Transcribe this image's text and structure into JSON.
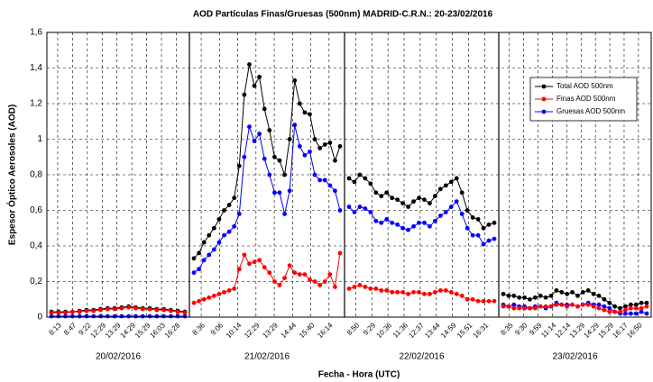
{
  "chart_data": {
    "type": "line",
    "title": "AOD Partículas Finas/Gruesas (500nm) MADRID-C.R.N.: 20-23/02/2016",
    "xlabel": "Fecha - Hora (UTC)",
    "ylabel": "Espesor Óptico Aerosoles (AOD)",
    "ylim": [
      0,
      1.6
    ],
    "yticks": [
      0,
      {
        "value": 0.2,
        "label": "0,2"
      },
      {
        "value": 0.4,
        "label": "0,4"
      },
      {
        "value": 0.6,
        "label": "0,6"
      },
      {
        "value": 0.8,
        "label": "0,8"
      },
      1,
      {
        "value": 1.2,
        "label": "1,2"
      },
      {
        "value": 1.4,
        "label": "1,4"
      },
      {
        "value": 1.6,
        "label": "1,6"
      }
    ],
    "grid": true,
    "legend": "upper right",
    "series": [
      {
        "name": "Total AOD 500nm",
        "color": "#000000"
      },
      {
        "name": "Finas AOD 500nm",
        "color": "#ff0000"
      },
      {
        "name": "Gruesas AOD 500nm",
        "color": "#0000ff"
      }
    ],
    "panels": [
      {
        "date": "20/02/2016",
        "xticks": [
          "8:13",
          "8:47",
          "9:22",
          "12:29",
          "13:29",
          "14:29",
          "15:29",
          "16:03",
          "16:28"
        ],
        "series": [
          {
            "values": [
              0.03,
              0.03,
              0.03,
              0.03,
              0.035,
              0.04,
              0.04,
              0.045,
              0.05,
              0.05,
              0.055,
              0.06,
              0.055,
              0.05,
              0.05,
              0.045,
              0.045,
              0.04,
              0.035,
              0.03
            ]
          },
          {
            "values": [
              0.025,
              0.025,
              0.025,
              0.03,
              0.03,
              0.035,
              0.035,
              0.04,
              0.045,
              0.045,
              0.05,
              0.055,
              0.05,
              0.045,
              0.045,
              0.04,
              0.04,
              0.035,
              0.03,
              0.025
            ]
          },
          {
            "values": [
              0.005,
              0.005,
              0.005,
              0.005,
              0.005,
              0.005,
              0.005,
              0.005,
              0.005,
              0.005,
              0.005,
              0.005,
              0.005,
              0.005,
              0.005,
              0.005,
              0.005,
              0.005,
              0.005,
              0.005
            ]
          }
        ]
      },
      {
        "date": "21/02/2016",
        "xticks": [
          "8:36",
          "9:06",
          "10:14",
          "12:29",
          "13:29",
          "14:44",
          "15:40",
          "16:14"
        ],
        "series": [
          {
            "values": [
              0.33,
              0.36,
              0.42,
              0.46,
              0.5,
              0.55,
              0.6,
              0.63,
              0.67,
              0.85,
              1.25,
              1.42,
              1.3,
              1.35,
              1.17,
              1.05,
              0.9,
              0.88,
              0.8,
              1.0,
              1.33,
              1.2,
              1.15,
              1.14,
              1.0,
              0.95,
              0.97,
              0.98,
              0.88,
              0.96
            ]
          },
          {
            "values": [
              0.08,
              0.09,
              0.1,
              0.11,
              0.12,
              0.13,
              0.14,
              0.15,
              0.16,
              0.27,
              0.35,
              0.3,
              0.31,
              0.32,
              0.28,
              0.25,
              0.2,
              0.18,
              0.22,
              0.29,
              0.25,
              0.24,
              0.24,
              0.21,
              0.2,
              0.18,
              0.2,
              0.24,
              0.17,
              0.36
            ]
          },
          {
            "values": [
              0.25,
              0.27,
              0.32,
              0.35,
              0.38,
              0.42,
              0.46,
              0.48,
              0.51,
              0.58,
              0.9,
              1.07,
              0.99,
              1.03,
              0.89,
              0.8,
              0.7,
              0.7,
              0.58,
              0.71,
              1.08,
              0.96,
              0.91,
              0.93,
              0.8,
              0.77,
              0.77,
              0.74,
              0.71,
              0.6
            ]
          }
        ]
      },
      {
        "date": "22/02/2016",
        "xticks": [
          "8:50",
          "9:29",
          "10:36",
          "11:36",
          "12:37",
          "13:44",
          "14:59",
          "15:51",
          "16:31"
        ],
        "series": [
          {
            "values": [
              0.78,
              0.76,
              0.8,
              0.78,
              0.75,
              0.7,
              0.68,
              0.7,
              0.67,
              0.66,
              0.64,
              0.62,
              0.65,
              0.67,
              0.66,
              0.64,
              0.68,
              0.72,
              0.74,
              0.76,
              0.78,
              0.7,
              0.6,
              0.56,
              0.55,
              0.5,
              0.52,
              0.53
            ]
          },
          {
            "values": [
              0.16,
              0.17,
              0.18,
              0.17,
              0.16,
              0.16,
              0.15,
              0.15,
              0.14,
              0.14,
              0.14,
              0.13,
              0.14,
              0.14,
              0.13,
              0.13,
              0.14,
              0.15,
              0.15,
              0.14,
              0.13,
              0.12,
              0.1,
              0.1,
              0.09,
              0.09,
              0.09,
              0.09
            ]
          },
          {
            "values": [
              0.62,
              0.59,
              0.62,
              0.61,
              0.59,
              0.54,
              0.53,
              0.55,
              0.53,
              0.52,
              0.5,
              0.49,
              0.51,
              0.53,
              0.53,
              0.51,
              0.54,
              0.57,
              0.59,
              0.62,
              0.65,
              0.58,
              0.5,
              0.46,
              0.46,
              0.41,
              0.43,
              0.44
            ]
          }
        ]
      },
      {
        "date": "23/02/2016",
        "xticks": [
          "8:35",
          "9:30",
          "9:59",
          "11:14",
          "12:14",
          "13:29",
          "14:29",
          "15:29",
          "16:17",
          "16:50"
        ],
        "series": [
          {
            "values": [
              0.13,
              0.12,
              0.12,
              0.11,
              0.11,
              0.1,
              0.11,
              0.12,
              0.11,
              0.12,
              0.15,
              0.14,
              0.13,
              0.14,
              0.12,
              0.14,
              0.15,
              0.13,
              0.12,
              0.1,
              0.08,
              0.06,
              0.05,
              0.06,
              0.07,
              0.07,
              0.08,
              0.08
            ]
          },
          {
            "values": [
              0.06,
              0.06,
              0.05,
              0.05,
              0.05,
              0.05,
              0.05,
              0.06,
              0.06,
              0.06,
              0.07,
              0.07,
              0.06,
              0.07,
              0.06,
              0.07,
              0.07,
              0.06,
              0.05,
              0.04,
              0.03,
              0.03,
              0.03,
              0.04,
              0.05,
              0.05,
              0.05,
              0.06
            ]
          },
          {
            "values": [
              0.07,
              0.06,
              0.07,
              0.06,
              0.06,
              0.05,
              0.06,
              0.06,
              0.05,
              0.06,
              0.08,
              0.07,
              0.07,
              0.07,
              0.06,
              0.07,
              0.08,
              0.07,
              0.07,
              0.06,
              0.05,
              0.03,
              0.02,
              0.02,
              0.02,
              0.02,
              0.03,
              0.02
            ]
          }
        ]
      }
    ]
  }
}
